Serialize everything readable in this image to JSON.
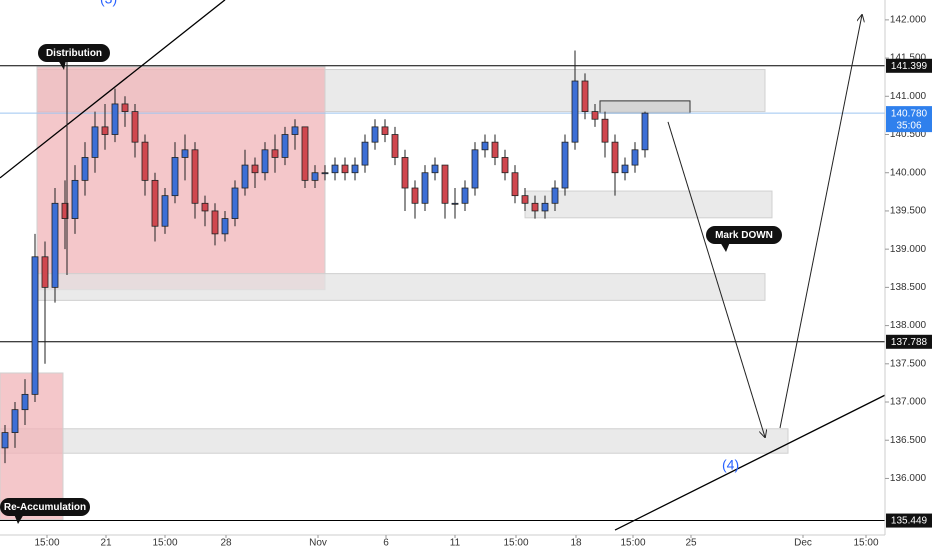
{
  "chart_data": {
    "type": "candlestick",
    "up_color": "#3d6fd6",
    "down_color": "#d0474f",
    "xlim": [
      0,
      221.25
    ],
    "ylim": [
      135.26,
      142.26
    ],
    "xticks": [
      {
        "value": 11.75,
        "label": "15:00"
      },
      {
        "value": 26.5,
        "label": "21"
      },
      {
        "value": 41.25,
        "label": "15:00"
      },
      {
        "value": 56.5,
        "label": "28"
      },
      {
        "value": 79.5,
        "label": "Nov"
      },
      {
        "value": 96.5,
        "label": "6"
      },
      {
        "value": 113.75,
        "label": "11"
      },
      {
        "value": 129,
        "label": "15:00"
      },
      {
        "value": 144,
        "label": "18"
      },
      {
        "value": 158.25,
        "label": "15:00"
      },
      {
        "value": 172.75,
        "label": "25"
      },
      {
        "value": 200.75,
        "label": "Dec"
      },
      {
        "value": 216.5,
        "label": "15:00"
      }
    ],
    "yticks": [
      {
        "value": 136,
        "label": "136.000"
      },
      {
        "value": 136.5,
        "label": "136.500"
      },
      {
        "value": 137,
        "label": "137.000"
      },
      {
        "value": 137.5,
        "label": "137.500"
      },
      {
        "value": 138,
        "label": "138.000"
      },
      {
        "value": 138.5,
        "label": "138.500"
      },
      {
        "value": 139,
        "label": "139.000"
      },
      {
        "value": 139.5,
        "label": "139.500"
      },
      {
        "value": 140,
        "label": "140.000"
      },
      {
        "value": 140.5,
        "label": "140.500"
      },
      {
        "value": 141,
        "label": "141.000"
      },
      {
        "value": 141.5,
        "label": "141.500"
      },
      {
        "value": 142,
        "label": "142.000"
      }
    ],
    "x": [
      1.25,
      3.75,
      6.25,
      8.75,
      11.25,
      13.75,
      16.25,
      18.75,
      21.25,
      23.75,
      26.25,
      28.75,
      31.25,
      33.75,
      36.25,
      38.75,
      41.25,
      43.75,
      46.25,
      48.75,
      51.25,
      53.75,
      56.25,
      58.75,
      61.25,
      63.75,
      66.25,
      68.75,
      71.25,
      73.75,
      76.25,
      78.75,
      81.25,
      83.75,
      86.25,
      88.75,
      91.25,
      93.75,
      96.25,
      98.75,
      101.25,
      103.75,
      106.25,
      108.75,
      111.25,
      113.75,
      116.25,
      118.75,
      121.25,
      123.75,
      126.25,
      128.75,
      131.25,
      133.75,
      136.25,
      138.75,
      141.25,
      143.75,
      146.25,
      148.75,
      151.25,
      153.75,
      156.25,
      158.75,
      161.25
    ],
    "ohlc": [
      [
        136.4,
        136.7,
        136.2,
        136.6
      ],
      [
        136.6,
        137.0,
        136.4,
        136.9
      ],
      [
        136.9,
        137.3,
        136.7,
        137.1
      ],
      [
        137.1,
        139.2,
        137.0,
        138.9
      ],
      [
        138.9,
        139.1,
        137.5,
        138.5
      ],
      [
        138.5,
        139.8,
        138.3,
        139.6
      ],
      [
        139.6,
        139.9,
        139.0,
        139.4
      ],
      [
        139.4,
        140.1,
        139.2,
        139.9
      ],
      [
        139.9,
        140.4,
        139.7,
        140.2
      ],
      [
        140.2,
        140.8,
        140.0,
        140.6
      ],
      [
        140.6,
        140.9,
        140.3,
        140.5
      ],
      [
        140.5,
        141.1,
        140.4,
        140.9
      ],
      [
        140.9,
        141.0,
        140.6,
        140.8
      ],
      [
        140.8,
        140.9,
        140.2,
        140.4
      ],
      [
        140.4,
        140.5,
        139.7,
        139.9
      ],
      [
        139.9,
        140.0,
        139.1,
        139.3
      ],
      [
        139.3,
        139.8,
        139.2,
        139.7
      ],
      [
        139.7,
        140.4,
        139.6,
        140.2
      ],
      [
        140.2,
        140.5,
        139.9,
        140.3
      ],
      [
        140.3,
        140.4,
        139.4,
        139.6
      ],
      [
        139.6,
        139.7,
        139.3,
        139.5
      ],
      [
        139.5,
        139.6,
        139.05,
        139.2
      ],
      [
        139.2,
        139.5,
        139.1,
        139.4
      ],
      [
        139.4,
        139.9,
        139.3,
        139.8
      ],
      [
        139.8,
        140.3,
        139.7,
        140.1
      ],
      [
        140.1,
        140.2,
        139.8,
        140.0
      ],
      [
        140.0,
        140.4,
        139.9,
        140.3
      ],
      [
        140.3,
        140.5,
        140.0,
        140.2
      ],
      [
        140.2,
        140.6,
        140.1,
        140.5
      ],
      [
        140.5,
        140.7,
        140.3,
        140.6
      ],
      [
        140.6,
        140.6,
        139.8,
        139.9
      ],
      [
        139.9,
        140.1,
        139.8,
        140.0
      ],
      [
        140.0,
        140.1,
        139.9,
        140.0
      ],
      [
        140.0,
        140.2,
        139.9,
        140.1
      ],
      [
        140.1,
        140.2,
        139.9,
        140.0
      ],
      [
        140.0,
        140.2,
        139.9,
        140.1
      ],
      [
        140.1,
        140.5,
        140.0,
        140.4
      ],
      [
        140.4,
        140.7,
        140.3,
        140.6
      ],
      [
        140.6,
        140.7,
        140.4,
        140.5
      ],
      [
        140.5,
        140.6,
        140.1,
        140.2
      ],
      [
        140.2,
        140.3,
        139.5,
        139.8
      ],
      [
        139.8,
        139.9,
        139.4,
        139.6
      ],
      [
        139.6,
        140.1,
        139.5,
        140.0
      ],
      [
        140.0,
        140.2,
        139.9,
        140.1
      ],
      [
        140.1,
        140.1,
        139.4,
        139.6
      ],
      [
        139.6,
        139.8,
        139.4,
        139.6
      ],
      [
        139.6,
        139.9,
        139.5,
        139.8
      ],
      [
        139.8,
        140.4,
        139.7,
        140.3
      ],
      [
        140.3,
        140.5,
        140.2,
        140.4
      ],
      [
        140.4,
        140.5,
        140.1,
        140.2
      ],
      [
        140.2,
        140.3,
        139.9,
        140.0
      ],
      [
        140.0,
        140.1,
        139.6,
        139.7
      ],
      [
        139.7,
        139.8,
        139.5,
        139.6
      ],
      [
        139.6,
        139.7,
        139.4,
        139.5
      ],
      [
        139.5,
        139.7,
        139.4,
        139.6
      ],
      [
        139.6,
        139.9,
        139.5,
        139.8
      ],
      [
        139.8,
        140.5,
        139.7,
        140.4
      ],
      [
        140.4,
        141.6,
        140.3,
        141.2
      ],
      [
        141.2,
        141.3,
        140.7,
        140.8
      ],
      [
        140.8,
        140.9,
        140.6,
        140.7
      ],
      [
        140.7,
        140.8,
        140.2,
        140.4
      ],
      [
        140.4,
        140.5,
        139.7,
        140.0
      ],
      [
        140.0,
        140.2,
        139.9,
        140.1
      ],
      [
        140.1,
        140.4,
        140.0,
        140.3
      ],
      [
        140.3,
        140.8,
        140.2,
        140.78
      ]
    ],
    "zones": [
      {
        "x": [
          9.25,
          191.25
        ],
        "y": [
          140.8,
          141.35
        ],
        "color": "#e3e3e3"
      },
      {
        "x": [
          9.25,
          81.25
        ],
        "y": [
          138.47,
          141.385
        ],
        "color": "#f0b4b8"
      },
      {
        "x": [
          131.25,
          193
        ],
        "y": [
          139.41,
          139.76
        ],
        "color": "#e3e3e3"
      },
      {
        "x": [
          9.25,
          191.25
        ],
        "y": [
          138.33,
          138.68
        ],
        "color": "#e3e3e3"
      },
      {
        "x": [
          0,
          197
        ],
        "y": [
          136.33,
          136.65
        ],
        "color": "#e3e3e3"
      },
      {
        "x": [
          0,
          15.75
        ],
        "y": [
          135.46,
          137.38
        ],
        "color": "#f0b4b8"
      },
      {
        "x": [
          150,
          172.5
        ],
        "y": [
          140.78,
          140.94
        ],
        "color": "#cfcfcf"
      }
    ],
    "trendlines": [
      {
        "x": [
          0,
          56.25
        ],
        "y": [
          139.932,
          142.262
        ]
      },
      {
        "x": [
          153.75,
          221.25
        ],
        "y": [
          135.325,
          137.09
        ]
      }
    ],
    "arrows": [
      {
        "x": [
          167,
          191.25
        ],
        "y": [
          140.665,
          136.54
        ]
      },
      {
        "x": [
          195,
          215.5
        ],
        "y": [
          136.66,
          142.065
        ]
      }
    ],
    "levels": [
      141.399,
      137.788,
      135.449
    ],
    "last_price": {
      "value": 140.78,
      "label": "140.780"
    },
    "countdown": "35:06",
    "annotations": [
      "Distribution",
      "Mark DOWN",
      "Re-Accumulation",
      "(3)",
      "(4)"
    ]
  }
}
